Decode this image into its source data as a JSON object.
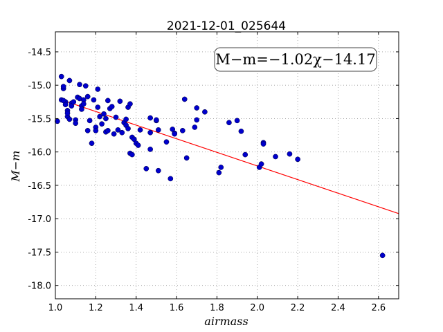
{
  "chart_data": {
    "type": "scatter",
    "title": "2021-12-01_025644",
    "xlabel": "airmass",
    "ylabel": "M−m",
    "xlim": [
      1.0,
      2.7
    ],
    "ylim": [
      -18.2,
      -14.2
    ],
    "xticks": [
      "1.0",
      "1.2",
      "1.4",
      "1.6",
      "1.8",
      "2.0",
      "2.2",
      "2.4",
      "2.6"
    ],
    "yticks": [
      "-14.5",
      "-15.0",
      "-15.5",
      "-16.0",
      "-16.5",
      "-17.0",
      "-17.5",
      "-18.0"
    ],
    "grid": true,
    "annotation": "M−m=−1.02χ−14.17",
    "fit": {
      "slope": -1.02,
      "intercept": -14.17,
      "color": "#ff0000"
    },
    "points_color": "#0000cc",
    "points": [
      [
        1.01,
        -15.54
      ],
      [
        1.03,
        -14.87
      ],
      [
        1.03,
        -15.22
      ],
      [
        1.04,
        -15.05
      ],
      [
        1.04,
        -15.02
      ],
      [
        1.05,
        -15.25
      ],
      [
        1.05,
        -15.29
      ],
      [
        1.04,
        -15.23
      ],
      [
        1.06,
        -15.47
      ],
      [
        1.06,
        -15.38
      ],
      [
        1.06,
        -15.42
      ],
      [
        1.07,
        -14.93
      ],
      [
        1.07,
        -15.51
      ],
      [
        1.08,
        -15.27
      ],
      [
        1.08,
        -15.31
      ],
      [
        1.09,
        -15.25
      ],
      [
        1.1,
        -15.52
      ],
      [
        1.1,
        -15.57
      ],
      [
        1.11,
        -15.18
      ],
      [
        1.12,
        -15.2
      ],
      [
        1.12,
        -14.99
      ],
      [
        1.13,
        -15.31
      ],
      [
        1.13,
        -15.36
      ],
      [
        1.14,
        -15.22
      ],
      [
        1.14,
        -15.28
      ],
      [
        1.15,
        -15.01
      ],
      [
        1.16,
        -15.68
      ],
      [
        1.16,
        -15.17
      ],
      [
        1.17,
        -15.53
      ],
      [
        1.18,
        -15.87
      ],
      [
        1.19,
        -15.22
      ],
      [
        1.2,
        -15.63
      ],
      [
        1.2,
        -15.68
      ],
      [
        1.21,
        -15.06
      ],
      [
        1.21,
        -15.33
      ],
      [
        1.22,
        -15.47
      ],
      [
        1.23,
        -15.58
      ],
      [
        1.24,
        -15.43
      ],
      [
        1.25,
        -15.5
      ],
      [
        1.25,
        -15.7
      ],
      [
        1.26,
        -15.23
      ],
      [
        1.26,
        -15.68
      ],
      [
        1.27,
        -15.35
      ],
      [
        1.28,
        -15.32
      ],
      [
        1.29,
        -15.73
      ],
      [
        1.3,
        -15.48
      ],
      [
        1.31,
        -15.67
      ],
      [
        1.32,
        -15.24
      ],
      [
        1.33,
        -15.71
      ],
      [
        1.34,
        -15.56
      ],
      [
        1.35,
        -15.51
      ],
      [
        1.35,
        -15.6
      ],
      [
        1.36,
        -15.33
      ],
      [
        1.36,
        -15.65
      ],
      [
        1.37,
        -15.28
      ],
      [
        1.37,
        -16.02
      ],
      [
        1.38,
        -15.78
      ],
      [
        1.38,
        -16.04
      ],
      [
        1.39,
        -15.81
      ],
      [
        1.4,
        -15.87
      ],
      [
        1.41,
        -15.9
      ],
      [
        1.42,
        -15.67
      ],
      [
        1.45,
        -16.25
      ],
      [
        1.47,
        -15.49
      ],
      [
        1.47,
        -15.71
      ],
      [
        1.47,
        -15.96
      ],
      [
        1.5,
        -15.53
      ],
      [
        1.5,
        -15.52
      ],
      [
        1.51,
        -15.67
      ],
      [
        1.51,
        -16.28
      ],
      [
        1.55,
        -15.85
      ],
      [
        1.57,
        -16.4
      ],
      [
        1.58,
        -15.66
      ],
      [
        1.59,
        -15.72
      ],
      [
        1.59,
        -15.73
      ],
      [
        1.63,
        -15.68
      ],
      [
        1.64,
        -15.21
      ],
      [
        1.65,
        -16.09
      ],
      [
        1.69,
        -15.63
      ],
      [
        1.7,
        -15.34
      ],
      [
        1.7,
        -15.52
      ],
      [
        1.74,
        -15.4
      ],
      [
        1.81,
        -16.31
      ],
      [
        1.82,
        -16.23
      ],
      [
        1.86,
        -15.56
      ],
      [
        1.9,
        -15.53
      ],
      [
        1.92,
        -15.69
      ],
      [
        1.94,
        -16.04
      ],
      [
        2.01,
        -16.23
      ],
      [
        2.02,
        -16.18
      ],
      [
        2.03,
        -15.86
      ],
      [
        2.03,
        -15.88
      ],
      [
        2.09,
        -16.07
      ],
      [
        2.16,
        -16.03
      ],
      [
        2.2,
        -16.11
      ],
      [
        2.62,
        -17.55
      ]
    ]
  }
}
